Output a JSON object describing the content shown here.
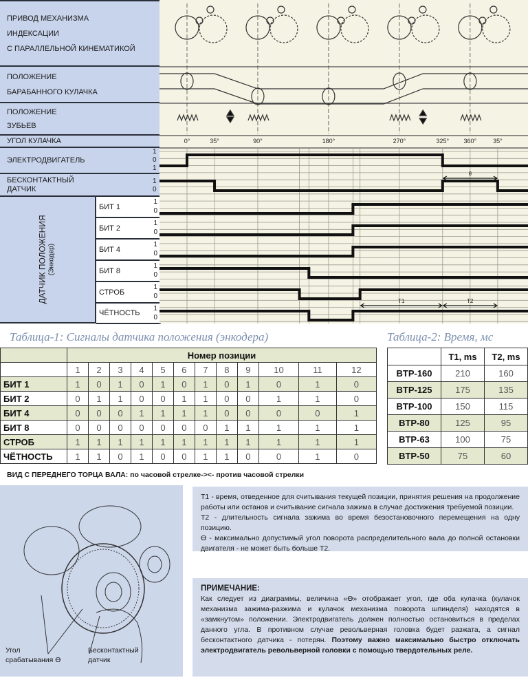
{
  "labels": {
    "drive": [
      "ПРИВОД МЕХАНИЗМА",
      "ИНДЕКСАЦИИ",
      "С ПАРАЛЛЕЛЬНОЙ КИНЕМАТИКОЙ"
    ],
    "drum": [
      "ПОЛОЖЕНИЕ",
      "БАРАБАННОГО КУЛАЧКА"
    ],
    "teeth": [
      "ПОЛОЖЕНИЕ",
      "ЗУБЬЕВ"
    ],
    "angle": "УГОЛ КУЛАЧКА",
    "motor": "ЭЛЕКТРОДВИГАТЕЛЬ",
    "sensor": [
      "БЕСКОНТАКТНЫЙ",
      "ДАТЧИК"
    ],
    "encoder": "ДАТЧИК ПОЛОЖЕНИЯ",
    "encoder_sub": "(Энкодер)",
    "bits": [
      "БИТ 1",
      "БИТ 2",
      "БИТ 4",
      "БИТ 8",
      "СТРОБ",
      "ЧЁТНОСТЬ"
    ],
    "level_hi": "1",
    "level_lo": "0"
  },
  "diagram": {
    "angle_ticks": [
      {
        "deg": 0,
        "label": "0°"
      },
      {
        "deg": 35,
        "label": "35°"
      },
      {
        "deg": 90,
        "label": "90°"
      },
      {
        "deg": 180,
        "label": "180°"
      },
      {
        "deg": 270,
        "label": "270°"
      },
      {
        "deg": 325,
        "label": "325°"
      },
      {
        "deg": 360,
        "label": "360°"
      },
      {
        "deg": 395,
        "label": "35°"
      }
    ],
    "signals": [
      {
        "name": "motor",
        "initial": 0,
        "transitions": [
          0,
          325
        ]
      },
      {
        "name": "sensor",
        "initial": 1,
        "transitions": [
          35,
          325,
          395
        ]
      },
      {
        "name": "bit1",
        "initial": 0,
        "transitions": [
          211
        ]
      },
      {
        "name": "bit2",
        "initial": 0,
        "transitions": [
          211
        ]
      },
      {
        "name": "bit4",
        "initial": 0,
        "transitions": [
          211
        ]
      },
      {
        "name": "bit8",
        "initial": 1,
        "transitions": [
          155
        ]
      },
      {
        "name": "strobe",
        "initial": 1,
        "transitions": [
          143,
          220
        ]
      },
      {
        "name": "parity",
        "initial": 1,
        "transitions": [
          155,
          211
        ]
      }
    ],
    "theta_label": "θ",
    "t1_label": "T1",
    "t2_label": "T2"
  },
  "table1": {
    "caption": "Таблица-1: Сигналы датчика положения (энкодера)",
    "header": "Номер позиции",
    "positions": [
      "1",
      "2",
      "3",
      "4",
      "5",
      "6",
      "7",
      "8",
      "9",
      "10",
      "11",
      "12"
    ],
    "rows": [
      {
        "label": "БИТ 1",
        "values": [
          "1",
          "0",
          "1",
          "0",
          "1",
          "0",
          "1",
          "0",
          "1",
          "0",
          "1",
          "0"
        ]
      },
      {
        "label": "БИТ 2",
        "values": [
          "0",
          "1",
          "1",
          "0",
          "0",
          "1",
          "1",
          "0",
          "0",
          "1",
          "1",
          "0"
        ]
      },
      {
        "label": "БИТ 4",
        "values": [
          "0",
          "0",
          "0",
          "1",
          "1",
          "1",
          "1",
          "0",
          "0",
          "0",
          "0",
          "1"
        ]
      },
      {
        "label": "БИТ 8",
        "values": [
          "0",
          "0",
          "0",
          "0",
          "0",
          "0",
          "0",
          "1",
          "1",
          "1",
          "1",
          "1"
        ]
      },
      {
        "label": "СТРОБ",
        "values": [
          "1",
          "1",
          "1",
          "1",
          "1",
          "1",
          "1",
          "1",
          "1",
          "1",
          "1",
          "1"
        ]
      },
      {
        "label": "ЧЁТНОСТЬ",
        "values": [
          "1",
          "1",
          "0",
          "1",
          "0",
          "0",
          "1",
          "1",
          "0",
          "0",
          "1",
          "0"
        ]
      }
    ]
  },
  "table2": {
    "caption": "Таблица-2: Время, мс",
    "headers": [
      "T1, ms",
      "T2, ms"
    ],
    "rows": [
      {
        "label": "BTP-160",
        "t1": "210",
        "t2": "160"
      },
      {
        "label": "BTP-125",
        "t1": "175",
        "t2": "135"
      },
      {
        "label": "BTP-100",
        "t1": "150",
        "t2": "115"
      },
      {
        "label": "BTP-80",
        "t1": "125",
        "t2": "95"
      },
      {
        "label": "BTP-63",
        "t1": "100",
        "t2": "75"
      },
      {
        "label": "BTP-50",
        "t1": "75",
        "t2": "60"
      }
    ]
  },
  "view_note": "ВИД С ПЕРЕДНЕГО ТОРЦА ВАЛА: по часовой стрелке-><- против часовой стрелки",
  "illustration": {
    "label_angle": [
      "Угол",
      "срабатывания Ө"
    ],
    "label_sensor": [
      "Бесконтактный",
      "датчик"
    ]
  },
  "definitions": [
    "T1 - время, отведенное для считывания текущей позиции, принятия решения на продолжение работы или останов и считывание сигнала зажима в случае достижения требуемой позиции.",
    "T2 - длительность сигнала зажима во время безостановочного перемещения на одну позицию.",
    "Ө - максимально допустимый угол поворота распределительного вала до полной остановки двигателя - не может быть больше T2."
  ],
  "note": {
    "title": "ПРИМЕЧАНИЕ:",
    "text": "Как следует из диаграммы, величина «Ө» отображает угол, где оба кулачка (кулачок механизма зажима-разжима и кулачок механизма поворота шпинделя) находятся в «замкнутом» положении. Электродвигатель должен полностью остановиться в пределах данного угла. В противном случае револьверная головка будет разжата, а сигнал бесконтактного датчика - потерян. ",
    "bold": "Поэтому важно максимально быстро отключать электродвигатель револьверной головки с помощью твердотельных реле."
  },
  "colors": {
    "label_bg": "#c8d4ec",
    "table_green": "#e3e8cf",
    "diagram_bg": "#f4f3e4",
    "caption": "#7d90b0"
  }
}
